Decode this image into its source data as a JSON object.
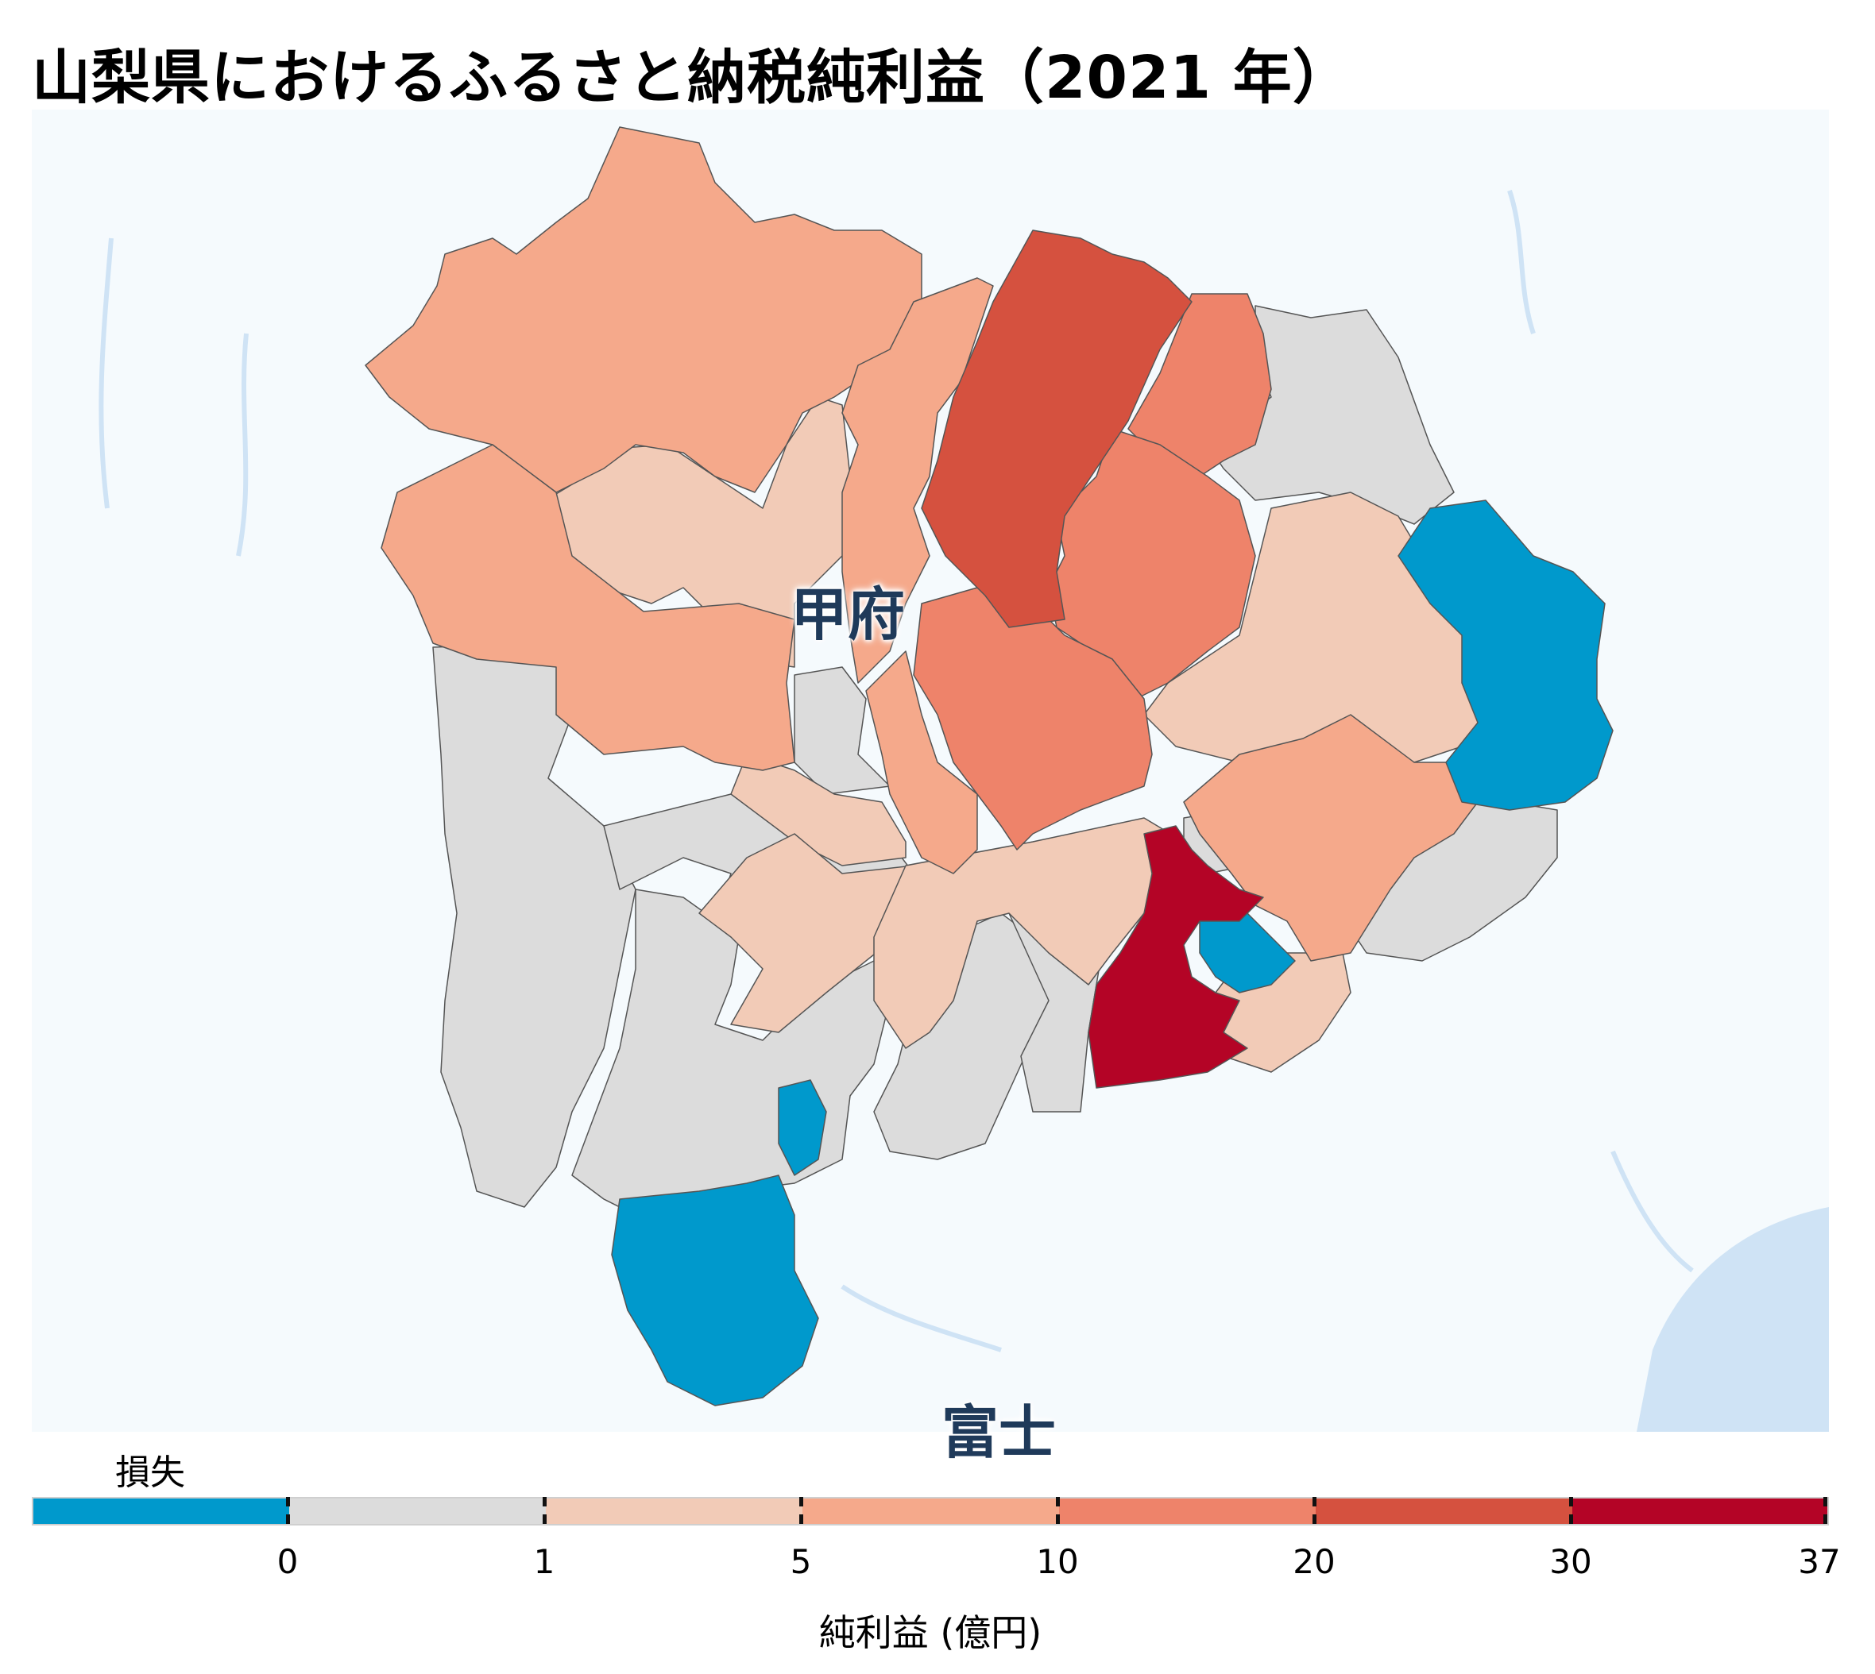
{
  "title": "山梨県におけるふるさと納税純利益（2021 年）",
  "map": {
    "city_labels": [
      "甲府",
      "富士"
    ],
    "colors": {
      "water": "#cfe3f5",
      "land_background": "#f5fafd",
      "loss": "#0099cc",
      "zero_to_1": "#dcdcdc",
      "1_to_5": "#f2cbb7",
      "5_to_10": "#f5a98b",
      "10_to_20": "#ee836a",
      "20_to_30": "#d5513f",
      "30_to_37": "#b40426"
    }
  },
  "legend": {
    "loss_label": "損失",
    "axis_label": "純利益 (億円)",
    "ticks": [
      "0",
      "1",
      "5",
      "10",
      "20",
      "30",
      "37"
    ],
    "bins": [
      {
        "range": "loss",
        "color": "#0099cc"
      },
      {
        "range": "0-1",
        "color": "#dcdcdc"
      },
      {
        "range": "1-5",
        "color": "#f2cbb7"
      },
      {
        "range": "5-10",
        "color": "#f5a98b"
      },
      {
        "range": "10-20",
        "color": "#ee836a"
      },
      {
        "range": "20-30",
        "color": "#d5513f"
      },
      {
        "range": "30-37",
        "color": "#b40426"
      }
    ]
  }
}
